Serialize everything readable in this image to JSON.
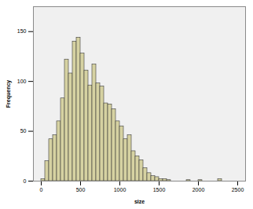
{
  "chart_data": {
    "type": "histogram",
    "x_label": "size",
    "y_label": "Frequency",
    "bins": [
      0,
      50,
      100,
      150,
      200,
      250,
      300,
      350,
      400,
      450,
      500,
      550,
      600,
      650,
      700,
      750,
      800,
      850,
      900,
      950,
      1000,
      1050,
      1100,
      1150,
      1200,
      1250,
      1300,
      1350,
      1400,
      1450,
      1500,
      1550,
      1600,
      1650,
      1700,
      1750,
      1800,
      1850,
      1900,
      1950,
      2000,
      2050,
      2100,
      2150,
      2200,
      2250,
      2300
    ],
    "values": [
      2,
      20,
      42,
      46,
      60,
      83,
      122,
      108,
      140,
      144,
      128,
      111,
      96,
      117,
      98,
      95,
      78,
      77,
      72,
      60,
      55,
      42,
      46,
      30,
      25,
      21,
      13,
      8,
      5,
      4,
      2,
      2,
      1,
      0,
      0,
      0,
      0,
      1,
      0,
      0,
      1,
      0,
      0,
      0,
      0,
      2
    ],
    "color": "#d6d2a2",
    "xlim": [
      -100,
      2600
    ],
    "ylim": [
      0,
      175
    ],
    "xticks": [
      0,
      500,
      1000,
      1500,
      2000,
      2500
    ],
    "yticks": [
      0,
      50,
      100,
      150
    ],
    "grid": false
  }
}
